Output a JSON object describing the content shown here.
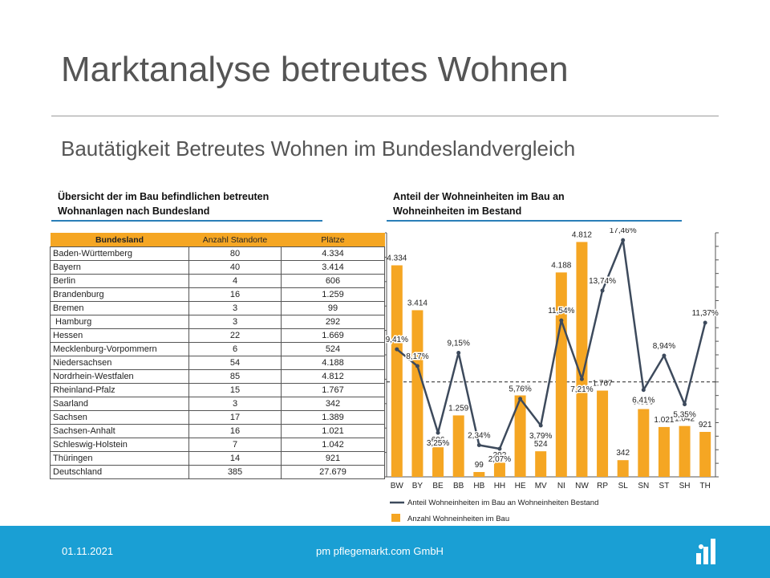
{
  "header": {
    "title": "Marktanalyse betreutes Wohnen",
    "subtitle": "Bautätigkeit Betreutes Wohnen im Bundeslandvergleich"
  },
  "table_section": {
    "heading_line1": "Übersicht der im Bau befindlichen betreuten",
    "heading_line2": "Wohnanlagen nach Bundesland"
  },
  "chart_section": {
    "heading_line1": "Anteil der Wohneinheiten im Bau an",
    "heading_line2": "Wohneinheiten im Bestand"
  },
  "table": {
    "headers": [
      "Bundesland",
      "Anzahl Standorte",
      "Plätze"
    ],
    "rows": [
      [
        "Baden-Württemberg",
        "80",
        "4.334"
      ],
      [
        "Bayern",
        "40",
        "3.414"
      ],
      [
        "Berlin",
        "4",
        "606"
      ],
      [
        "Brandenburg",
        "16",
        "1.259"
      ],
      [
        "Bremen",
        "3",
        "99"
      ],
      [
        " Hamburg",
        "3",
        "292"
      ],
      [
        "Hessen",
        "22",
        "1.669"
      ],
      [
        "Mecklenburg-Vorpommern",
        "6",
        "524"
      ],
      [
        "Niedersachsen",
        "54",
        "4.188"
      ],
      [
        "Nordrhein-Westfalen",
        "85",
        "4.812"
      ],
      [
        "Rheinland-Pfalz",
        "15",
        "1.767"
      ],
      [
        "Saarland",
        "3",
        "342"
      ],
      [
        "Sachsen",
        "17",
        "1.389"
      ],
      [
        "Sachsen-Anhalt",
        "16",
        "1.021"
      ],
      [
        "Schleswig-Holstein",
        "7",
        "1.042"
      ],
      [
        "Thüringen",
        "14",
        "921"
      ],
      [
        "Deutschland",
        "385",
        "27.679"
      ]
    ]
  },
  "chart_data": {
    "type": "bar",
    "categories": [
      "BW",
      "BY",
      "BE",
      "BB",
      "HB",
      "HH",
      "HE",
      "MV",
      "NI",
      "NW",
      "RP",
      "SL",
      "SN",
      "ST",
      "SH",
      "TH"
    ],
    "series": [
      {
        "name": "Anzahl Wohneinheiten im Bau",
        "type": "bar",
        "values": [
          4334,
          3414,
          606,
          1259,
          99,
          292,
          1669,
          524,
          4188,
          4812,
          1767,
          342,
          1389,
          1021,
          1042,
          921
        ],
        "labels": [
          "4.334",
          "3.414",
          "606",
          "1.259",
          "99",
          "292",
          "1.669",
          "524",
          "4.188",
          "4.812",
          "1.767",
          "342",
          "1.389",
          "1.021",
          "1.042",
          "921"
        ],
        "color": "#f5a623"
      },
      {
        "name": "Anteil Wohneinheiten im Bau an Wohneinheiten Bestand",
        "type": "line",
        "values": [
          9.41,
          8.17,
          3.25,
          9.15,
          2.34,
          2.07,
          5.76,
          3.79,
          11.54,
          7.21,
          13.74,
          17.46,
          6.41,
          8.94,
          5.35,
          11.37
        ],
        "labels": [
          "9,41%",
          "8,17%",
          "3,25%",
          "9,15%",
          "2,34%",
          "2,07%",
          "5,76%",
          "3,79%",
          "11,54%",
          "7,21%",
          "13,74%",
          "17,46%",
          "6,41%",
          "8,94%",
          "5,35%",
          "11,37%"
        ],
        "color": "#3d4a5c"
      }
    ],
    "bar_ylim": [
      0,
      5000
    ],
    "line_ylim": [
      0,
      18
    ],
    "reference_line_value": 7,
    "legend_position": "bottom",
    "grid": false
  },
  "footer": {
    "date": "01.11.2021",
    "company": "pm pflegemarkt.com GmbH"
  },
  "colors": {
    "footer_bg": "#1a9fd4",
    "accent_rule": "#2a7fb8",
    "table_header": "#f5a623",
    "title_text": "#555555"
  }
}
